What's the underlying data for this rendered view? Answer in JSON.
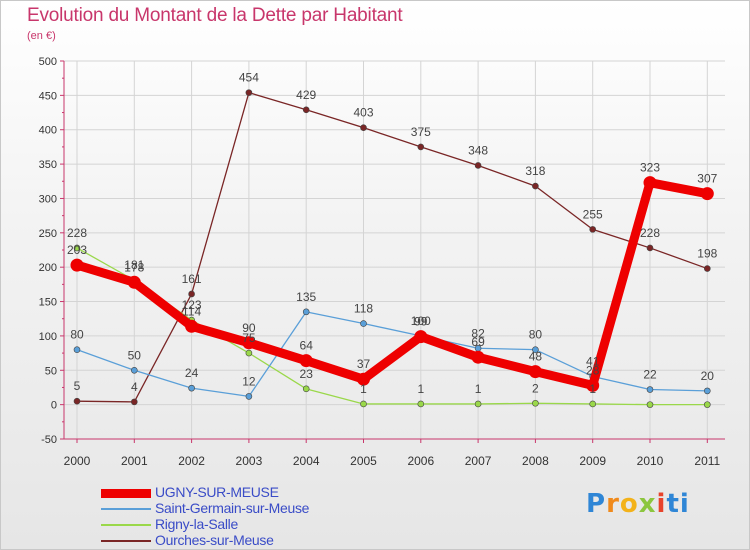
{
  "header": {
    "title": "Evolution du Montant de la Dette par Habitant",
    "subtitle": "(en €)"
  },
  "logo": {
    "text": "Proxiti",
    "letters": [
      "P",
      "r",
      "o",
      "x",
      "i",
      "ti"
    ]
  },
  "chart_data": {
    "type": "line",
    "title": "Evolution du Montant de la Dette par Habitant",
    "subtitle": "(en €)",
    "x": [
      "2000",
      "2001",
      "2002",
      "2003",
      "2004",
      "2005",
      "2006",
      "2007",
      "2008",
      "2009",
      "2010",
      "2011"
    ],
    "ylim": [
      -50,
      500
    ],
    "yticks": [
      -50,
      0,
      50,
      100,
      150,
      200,
      250,
      300,
      350,
      400,
      450,
      500
    ],
    "grid": true,
    "legend_position": "bottom-left",
    "series": [
      {
        "name": "Ourches-sur-Meuse",
        "color": "#7a2626",
        "values": [
          5,
          4,
          161,
          454,
          429,
          403,
          375,
          348,
          318,
          255,
          228,
          198
        ],
        "labels": [
          "5",
          "4",
          "161",
          "454",
          "429",
          "403",
          "375",
          "348",
          "318",
          "255",
          "228",
          "198"
        ]
      },
      {
        "name": "Rigny-la-Salle",
        "color": "#9ad84a",
        "values": [
          228,
          181,
          123,
          75,
          23,
          1,
          1,
          1,
          2,
          1,
          0,
          0
        ],
        "labels": [
          "228",
          "181",
          "123",
          "75",
          "23",
          "1",
          "1",
          "1",
          "2",
          "1",
          "",
          ""
        ]
      },
      {
        "name": "Saint-Germain-sur-Meuse",
        "color": "#5a9fd8",
        "values": [
          80,
          50,
          24,
          12,
          135,
          118,
          100,
          82,
          80,
          41,
          22,
          20
        ],
        "labels": [
          "80",
          "50",
          "24",
          "12",
          "135",
          "118",
          "100",
          "82",
          "80",
          "41",
          "22",
          "20"
        ]
      },
      {
        "name": "UGNY-SUR-MEUSE",
        "color": "#ee0000",
        "values": [
          203,
          178,
          114,
          90,
          64,
          37,
          99,
          69,
          48,
          28,
          323,
          307
        ],
        "labels": [
          "203",
          "178",
          "114",
          "90",
          "64",
          "37",
          "99",
          "69",
          "48",
          "28",
          "323",
          "307"
        ]
      }
    ],
    "legend_order": [
      "UGNY-SUR-MEUSE",
      "Saint-Germain-sur-Meuse",
      "Rigny-la-Salle",
      "Ourches-sur-Meuse"
    ]
  }
}
